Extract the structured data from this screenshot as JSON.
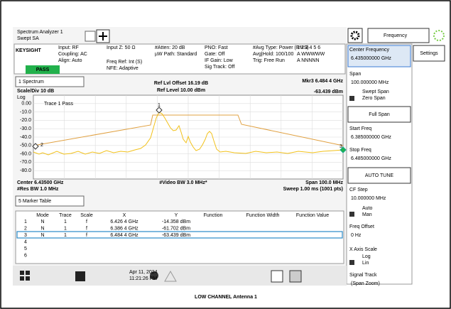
{
  "tab": {
    "title": "Spectrum Analyzer 1",
    "subtitle": "Swept SA"
  },
  "menu": "Frequency",
  "brand": "KEYSIGHT",
  "status": "PASS",
  "settings": [
    [
      "Input: RF",
      "Coupling: AC",
      "Align: Auto"
    ],
    [
      "Input Z: 50 Ω"
    ],
    [
      "Freq Ref: Int (S)",
      "NFE: Adaptive"
    ],
    [
      "#Atten: 20 dB",
      "µW Path: Standard"
    ],
    [
      "PNO: Fast",
      "Gate: Off",
      "IF Gain: Low",
      "Sig Track: Off"
    ],
    [
      "#Avg Type: Power (RMS)",
      "Avg|Hold: 100/100",
      "Trig: Free Run"
    ]
  ],
  "trace_indicators": [
    "1 2 3 4 5 6",
    "A WWWWW",
    "A NNNNN"
  ],
  "plot": {
    "window": "1 Spectrum",
    "ref_offset": "Ref Lvl Offset 16.19 dB",
    "ref_level": "Ref Level 10.00 dBm",
    "marker": "Mkr3 6.484 4 GHz",
    "marker_value": "-63.439 dBm",
    "scale": "Scale/Div 10 dB",
    "scale_type": "Log",
    "trace_status": "Trace 1 Pass",
    "y_labels": [
      "0.00",
      "-10.0",
      "-20.0",
      "-30.0",
      "-40.0",
      "-50.0",
      "-60.0",
      "-70.0",
      "-80.0"
    ],
    "marker_ids": [
      "1",
      "2",
      "3"
    ],
    "center": "Center 6.43500 GHz",
    "vbw": "#Video BW 3.0 MHz*",
    "span": "Span 100.0 MHz",
    "rbw": "#Res BW 1.0 MHz",
    "sweep": "Sweep 1.00 ms (1001 pts)"
  },
  "marker_table": {
    "window": "5 Marker Table",
    "columns": [
      "Mode",
      "Trace",
      "Scale",
      "X",
      "Y",
      "Function",
      "Function Width",
      "Function Value"
    ],
    "rows": [
      [
        "1",
        "N",
        "1",
        "f",
        "6.426 4 GHz",
        "-14.358 dBm"
      ],
      [
        "2",
        "N",
        "1",
        "f",
        "6.386 4 GHz",
        "-61.702 dBm"
      ],
      [
        "3",
        "N",
        "1",
        "f",
        "6.484 4 GHz",
        "-63.439 dBm"
      ],
      [
        "4"
      ],
      [
        "5"
      ],
      [
        "6"
      ]
    ]
  },
  "panel": {
    "center_freq": {
      "label": "Center Frequency",
      "value": "6.435000000 GHz"
    },
    "settings": "Settings",
    "span": {
      "label": "Span",
      "value": "100.000000 MHz"
    },
    "span_options": [
      "Swept Span",
      "Zero Span"
    ],
    "full_span": "Full Span",
    "start_freq": {
      "label": "Start Freq",
      "value": "6.385000000 GHz"
    },
    "stop_freq": {
      "label": "Stop Freq",
      "value": "6.485000000 GHz"
    },
    "auto_tune": "AUTO TUNE",
    "cf_step": {
      "label": "CF Step",
      "value": "10.000000 MHz"
    },
    "cf_step_options": [
      "Auto",
      "Man"
    ],
    "freq_offset": {
      "label": "Freq Offset",
      "value": "0 Hz"
    },
    "x_axis_scale": {
      "label": "X Axis Scale",
      "options": [
        "Log",
        "Lin"
      ]
    },
    "signal_track": {
      "label": "Signal Track",
      "value": "(Span Zoom)"
    }
  },
  "taskbar": {
    "date": "Apr 11, 2024",
    "time": "11:21:26 PM"
  },
  "caption": "LOW CHANNEL Antenna 1"
}
